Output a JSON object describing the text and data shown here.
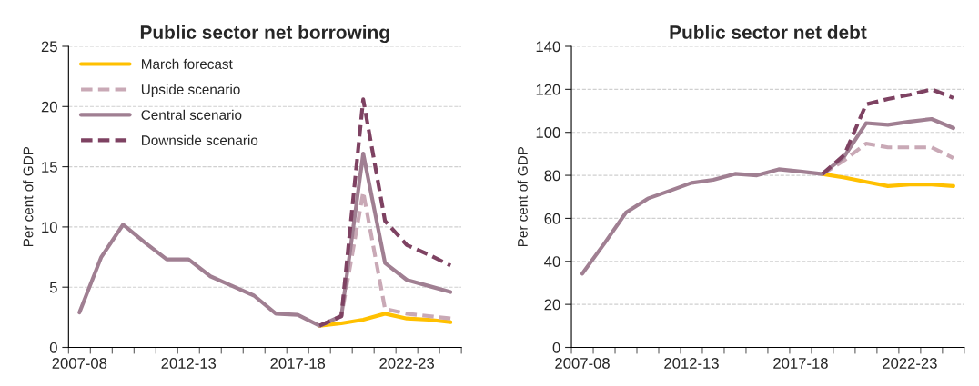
{
  "chart_data": [
    {
      "type": "line",
      "title": "Public sector net borrowing",
      "ylabel": "Per cent of GDP",
      "categories": [
        "2007-08",
        null,
        null,
        null,
        null,
        "2012-13",
        null,
        null,
        null,
        null,
        "2017-18",
        null,
        null,
        null,
        null,
        "2022-23",
        null,
        null
      ],
      "ylim": [
        0,
        25
      ],
      "yticks": [
        0,
        5,
        10,
        15,
        20,
        25
      ],
      "grid": "y",
      "legend": "top left",
      "series": [
        {
          "name": "March forecast",
          "color": "#ffc000",
          "line_style": "solid",
          "values": [
            null,
            null,
            null,
            null,
            null,
            null,
            null,
            null,
            null,
            null,
            null,
            1.8,
            2.0,
            2.3,
            2.8,
            2.4,
            2.3,
            2.1
          ]
        },
        {
          "name": "Upside scenario",
          "color": "#c9a9b6",
          "line_style": "dashed",
          "values": [
            null,
            null,
            null,
            null,
            null,
            null,
            null,
            null,
            null,
            null,
            null,
            1.8,
            2.6,
            12.9,
            3.2,
            2.8,
            2.6,
            2.4
          ]
        },
        {
          "name": "Central scenario",
          "color": "#a07f92",
          "line_style": "solid",
          "values": [
            2.9,
            7.5,
            10.2,
            8.7,
            7.3,
            7.3,
            5.9,
            5.1,
            4.3,
            2.8,
            2.7,
            1.8,
            2.6,
            16.1,
            7.0,
            5.6,
            5.1,
            4.6
          ]
        },
        {
          "name": "Downside scenario",
          "color": "#7e4262",
          "line_style": "dashed",
          "values": [
            null,
            null,
            null,
            null,
            null,
            null,
            null,
            null,
            null,
            null,
            null,
            1.8,
            2.6,
            20.6,
            10.5,
            8.5,
            7.7,
            6.8
          ]
        }
      ]
    },
    {
      "type": "line",
      "title": "Public sector net debt",
      "ylabel": "Per cent of GDP",
      "categories": [
        "2007-08",
        null,
        null,
        null,
        null,
        "2012-13",
        null,
        null,
        null,
        null,
        "2017-18",
        null,
        null,
        null,
        null,
        "2022-23",
        null,
        null
      ],
      "ylim": [
        0,
        140
      ],
      "yticks": [
        0,
        20,
        40,
        60,
        80,
        100,
        120,
        140
      ],
      "grid": "y",
      "series": [
        {
          "color": "#ffc000",
          "line_style": "solid",
          "values": [
            null,
            null,
            null,
            null,
            null,
            null,
            null,
            null,
            null,
            null,
            null,
            80.6,
            79.0,
            77.0,
            75.0,
            75.7,
            75.7,
            75.0
          ]
        },
        {
          "color": "#c9a9b6",
          "line_style": "dashed",
          "values": [
            null,
            null,
            null,
            null,
            null,
            null,
            null,
            null,
            null,
            null,
            null,
            80.6,
            87.0,
            94.8,
            93.0,
            93.0,
            93.0,
            88.0
          ]
        },
        {
          "color": "#a07f92",
          "line_style": "solid",
          "values": [
            34.3,
            48.2,
            62.7,
            69.2,
            72.8,
            76.5,
            77.9,
            80.7,
            80.0,
            82.8,
            81.8,
            80.6,
            88.7,
            104.3,
            103.5,
            105.0,
            106.2,
            102.0
          ]
        },
        {
          "color": "#7e4262",
          "line_style": "dashed",
          "values": [
            null,
            null,
            null,
            null,
            null,
            null,
            null,
            null,
            null,
            null,
            null,
            80.6,
            89.5,
            113.0,
            115.5,
            117.5,
            120.0,
            116.0
          ]
        }
      ]
    }
  ]
}
